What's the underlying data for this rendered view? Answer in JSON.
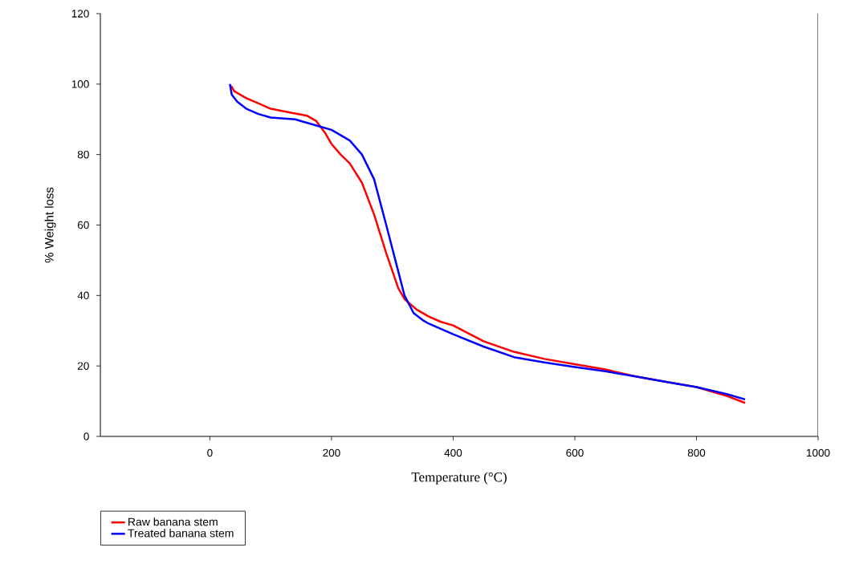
{
  "chart_data": {
    "type": "line",
    "xlabel": "Temperature (°C)",
    "ylabel": "% Weight loss",
    "xlim": [
      -180,
      1000
    ],
    "xticks": [
      0,
      200,
      400,
      600,
      800,
      1000
    ],
    "ylim": [
      0,
      120
    ],
    "yticks": [
      0,
      20,
      40,
      60,
      80,
      100,
      120
    ],
    "grid": false,
    "legend": "bottom left",
    "marker": "none",
    "line_style": "solid",
    "series": [
      {
        "name": "Raw banana stem",
        "color": "#ff0000",
        "x": [
          35,
          40,
          60,
          80,
          100,
          130,
          160,
          175,
          190,
          200,
          215,
          230,
          250,
          270,
          290,
          310,
          320,
          340,
          360,
          380,
          400,
          450,
          500,
          550,
          600,
          650,
          700,
          750,
          800,
          850,
          880
        ],
        "values": [
          99.5,
          98,
          96,
          94.5,
          93,
          92,
          91,
          89.5,
          86,
          83,
          80,
          77.5,
          72,
          63,
          52,
          42,
          39,
          36,
          34,
          32.5,
          31.5,
          27,
          24,
          22,
          20.5,
          19,
          17,
          15.5,
          14,
          11.5,
          9.5
        ]
      },
      {
        "name": "Treated banana stem",
        "color": "#0000ff",
        "x": [
          33,
          36,
          45,
          60,
          80,
          100,
          140,
          180,
          200,
          230,
          250,
          270,
          290,
          305,
          320,
          335,
          350,
          360,
          400,
          450,
          500,
          550,
          600,
          650,
          700,
          750,
          800,
          850,
          880
        ],
        "values": [
          100,
          97,
          95,
          93,
          91.5,
          90.5,
          90,
          88,
          87,
          84,
          80,
          73,
          60,
          50,
          40,
          35,
          33,
          32,
          29,
          25.5,
          22.5,
          21,
          19.7,
          18.5,
          17,
          15.5,
          14,
          12,
          10.5
        ]
      }
    ]
  }
}
